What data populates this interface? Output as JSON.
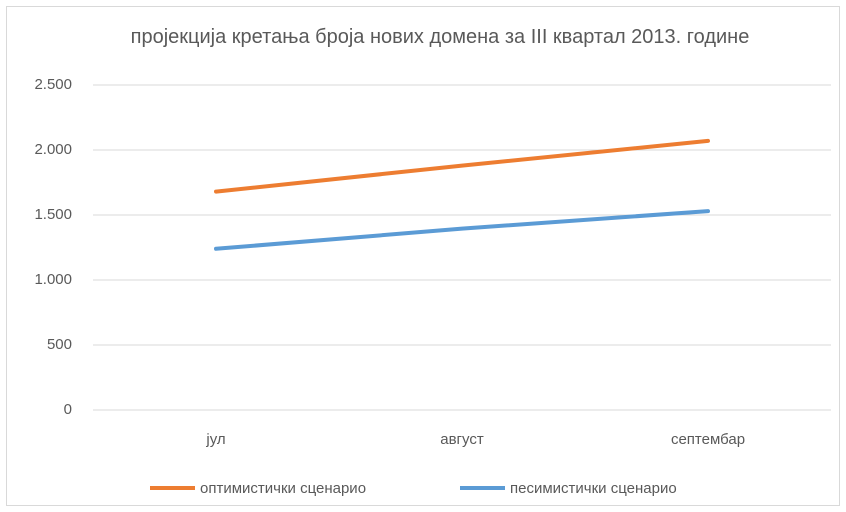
{
  "chart_data": {
    "type": "line",
    "title": "пројекција кретања броја нових домена за III квартал 2013. године",
    "categories": [
      "јул",
      "август",
      "септембар"
    ],
    "series": [
      {
        "name": "оптимистички сценарио",
        "color": "#ed7d31",
        "values": [
          1680,
          1880,
          2070
        ]
      },
      {
        "name": "песимистички сценарио",
        "color": "#5b9bd5",
        "values": [
          1240,
          1395,
          1530
        ]
      }
    ],
    "ylim": [
      0,
      2500
    ],
    "yticks": [
      0,
      500,
      {
        "value": 1000,
        "label": "1.000"
      },
      {
        "value": 1500,
        "label": "1.500"
      },
      {
        "value": 2000,
        "label": "2.000"
      },
      {
        "value": 2500,
        "label": "2.500"
      }
    ],
    "grid": true,
    "legend": "bottom"
  }
}
